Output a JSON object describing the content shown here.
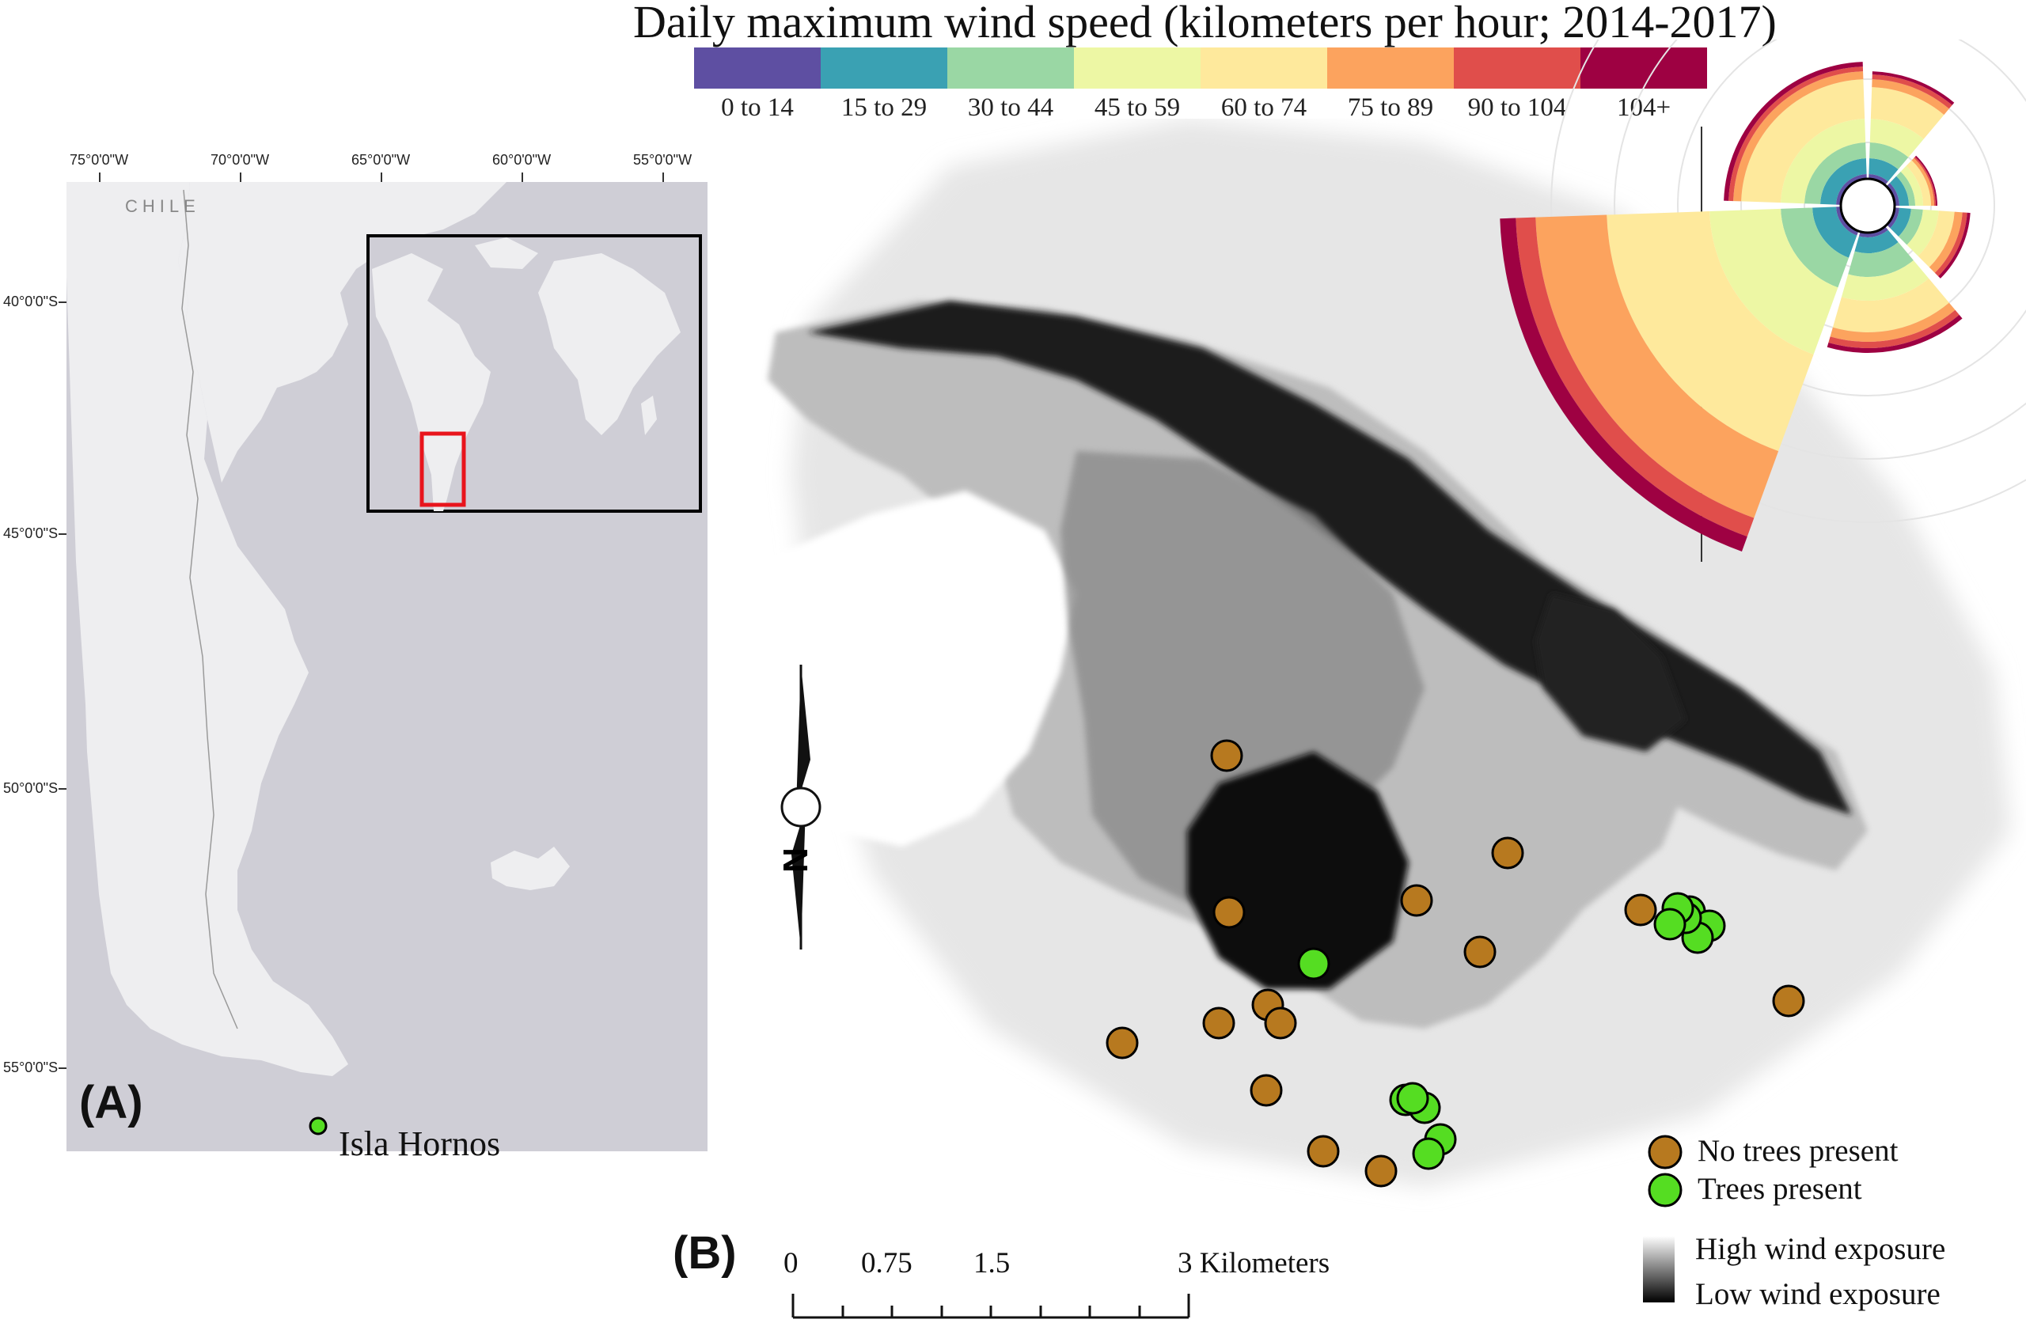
{
  "legend_title": "Daily maximum wind speed (kilometers per hour; 2014-2017)",
  "wind_bins": [
    {
      "label": "0 to 14",
      "color": "#5e4fa2"
    },
    {
      "label": "15 to 29",
      "color": "#3aa1b3"
    },
    {
      "label": "30 to 44",
      "color": "#9ad7a4"
    },
    {
      "label": "45 to 59",
      "color": "#edf7a4"
    },
    {
      "label": "60 to 74",
      "color": "#fee99c"
    },
    {
      "label": "75 to 89",
      "color": "#fca35e"
    },
    {
      "label": "90 to 104",
      "color": "#e04e4b"
    },
    {
      "label": "104+",
      "color": "#9e0142"
    }
  ],
  "panel_a": {
    "label": "(A)",
    "country": "CHILE",
    "longitudes": [
      "75°0'0\"W",
      "70°0'0\"W",
      "65°0'0\"W",
      "60°0'0\"W",
      "55°0'0\"W"
    ],
    "latitudes": [
      "40°0'0\"S",
      "45°0'0\"S",
      "50°0'0\"S",
      "55°0'0\"S"
    ],
    "site_label": "Isla Hornos",
    "site_color": "#55dd22"
  },
  "panel_b": {
    "label": "(B)",
    "north_label": "N",
    "scale_labels": [
      "0",
      "0.75",
      "1.5",
      "3 Kilometers"
    ],
    "legend": {
      "no_trees": "No trees present",
      "trees": "Trees present",
      "high": "High wind exposure",
      "low": "Low wind exposure"
    },
    "colors": {
      "no_trees": "#b7791f",
      "trees": "#55dd22"
    }
  }
}
